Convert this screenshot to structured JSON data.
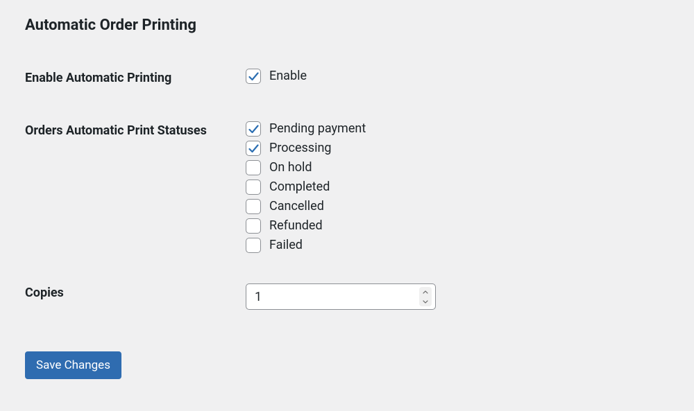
{
  "page": {
    "title": "Automatic Order Printing"
  },
  "form": {
    "enable": {
      "label": "Enable Automatic Printing",
      "checkbox_label": "Enable",
      "checked": true
    },
    "statuses": {
      "label": "Orders Automatic Print Statuses",
      "options": [
        {
          "label": "Pending payment",
          "checked": true
        },
        {
          "label": "Processing",
          "checked": true
        },
        {
          "label": "On hold",
          "checked": false
        },
        {
          "label": "Completed",
          "checked": false
        },
        {
          "label": "Cancelled",
          "checked": false
        },
        {
          "label": "Refunded",
          "checked": false
        },
        {
          "label": "Failed",
          "checked": false
        }
      ]
    },
    "copies": {
      "label": "Copies",
      "value": "1"
    },
    "save_button": "Save Changes"
  },
  "colors": {
    "background": "#f0f0f1",
    "text": "#1d2327",
    "checkbox_border": "#8c8f94",
    "checkmark": "#2a6db1",
    "button_bg": "#2f6cb0",
    "button_text": "#ffffff",
    "input_bg": "#ffffff"
  }
}
